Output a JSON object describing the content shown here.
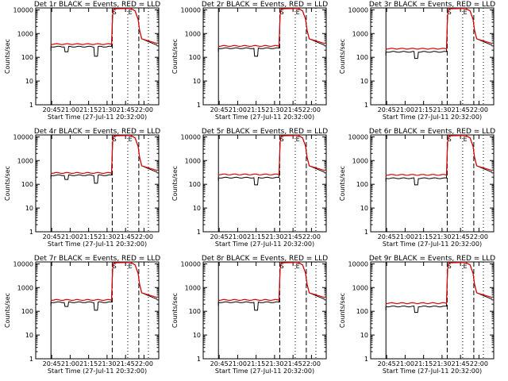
{
  "page": {
    "background": "#ffffff"
  },
  "style": {
    "events_color": "#000000",
    "lld_color": "#e00000"
  },
  "chart_data": [
    {
      "type": "line",
      "title": "Det 1r BLACK = Events, RED = LLD",
      "xlabel": "Start Time (27-Jul-11 20:32:00)",
      "ylabel": "Counts/sec",
      "x_ticks": [
        "20:45",
        "21:00",
        "21:15",
        "21:30",
        "21:45",
        "22:00"
      ],
      "y_ticks": [
        "1",
        "10",
        "100",
        "1000",
        "10000"
      ],
      "y_scale": "log",
      "ylim": [
        1,
        12000
      ],
      "series": [
        {
          "color": "#000000",
          "level": 280,
          "dips": [
            [
              20.95,
              170
            ],
            [
              21.35,
              110
            ]
          ],
          "start_dip": 190
        },
        {
          "color": "#e00000",
          "level": 360
        }
      ],
      "markers": [
        "S",
        "E"
      ]
    },
    {
      "type": "line",
      "title": "Det 2r BLACK = Events, RED = LLD",
      "xlabel": "Start Time (27-Jul-11 20:32:00)",
      "ylabel": "Counts/sec",
      "x_ticks": [
        "20:45",
        "21:00",
        "21:15",
        "21:30",
        "21:45",
        "22:00"
      ],
      "y_ticks": [
        "1",
        "10",
        "100",
        "1000",
        "10000"
      ],
      "y_scale": "log",
      "ylim": [
        1,
        12000
      ],
      "series": [
        {
          "color": "#000000",
          "level": 240,
          "dips": [
            [
              21.25,
              110
            ]
          ],
          "start_dip": 170
        },
        {
          "color": "#e00000",
          "level": 300
        }
      ],
      "markers": [
        "S",
        "E"
      ]
    },
    {
      "type": "line",
      "title": "Det 3r BLACK = Events, RED = LLD",
      "xlabel": "Start Time (27-Jul-11 20:32:00)",
      "ylabel": "Counts/sec",
      "x_ticks": [
        "20:45",
        "21:00",
        "21:15",
        "21:30",
        "21:45",
        "22:00"
      ],
      "y_ticks": [
        "1",
        "10",
        "100",
        "1000",
        "10000"
      ],
      "y_scale": "log",
      "ylim": [
        1,
        12000
      ],
      "series": [
        {
          "color": "#000000",
          "level": 170,
          "dips": [
            [
              21.15,
              90
            ]
          ],
          "start_dip": 120
        },
        {
          "color": "#e00000",
          "level": 230
        }
      ],
      "markers": [
        "S",
        "E"
      ]
    },
    {
      "type": "line",
      "title": "Det 4r BLACK = Events, RED = LLD",
      "xlabel": "Start Time (27-Jul-11 20:32:00)",
      "ylabel": "Counts/sec",
      "x_ticks": [
        "20:45",
        "21:00",
        "21:15",
        "21:30",
        "21:45",
        "22:00"
      ],
      "y_ticks": [
        "1",
        "10",
        "100",
        "1000",
        "10000"
      ],
      "y_scale": "log",
      "ylim": [
        1,
        12000
      ],
      "series": [
        {
          "color": "#000000",
          "level": 240,
          "dips": [
            [
              20.95,
              160
            ],
            [
              21.35,
              110
            ]
          ],
          "start_dip": 170
        },
        {
          "color": "#e00000",
          "level": 300
        }
      ],
      "markers": [
        "S",
        "E"
      ]
    },
    {
      "type": "line",
      "title": "Det 5r BLACK = Events, RED = LLD",
      "xlabel": "Start Time (27-Jul-11 20:32:00)",
      "ylabel": "Counts/sec",
      "x_ticks": [
        "20:45",
        "21:00",
        "21:15",
        "21:30",
        "21:45",
        "22:00"
      ],
      "y_ticks": [
        "1",
        "10",
        "100",
        "1000",
        "10000"
      ],
      "y_scale": "log",
      "ylim": [
        1,
        12000
      ],
      "series": [
        {
          "color": "#000000",
          "level": 190,
          "dips": [
            [
              21.25,
              95
            ]
          ],
          "start_dip": 140
        },
        {
          "color": "#e00000",
          "level": 260
        }
      ],
      "markers": [
        "S",
        "E"
      ]
    },
    {
      "type": "line",
      "title": "Det 6r BLACK = Events, RED = LLD",
      "xlabel": "Start Time (27-Jul-11 20:32:00)",
      "ylabel": "Counts/sec",
      "x_ticks": [
        "20:45",
        "21:00",
        "21:15",
        "21:30",
        "21:45",
        "22:00"
      ],
      "y_ticks": [
        "1",
        "10",
        "100",
        "1000",
        "10000"
      ],
      "y_scale": "log",
      "ylim": [
        1,
        12000
      ],
      "series": [
        {
          "color": "#000000",
          "level": 180,
          "dips": [
            [
              21.15,
              95
            ]
          ],
          "start_dip": 130
        },
        {
          "color": "#e00000",
          "level": 250
        }
      ],
      "markers": [
        "S",
        "E"
      ]
    },
    {
      "type": "line",
      "title": "Det 7r BLACK = Events, RED = LLD",
      "xlabel": "Start Time (27-Jul-11 20:32:00)",
      "ylabel": "Counts/sec",
      "x_ticks": [
        "20:45",
        "21:00",
        "21:15",
        "21:30",
        "21:45",
        "22:00"
      ],
      "y_ticks": [
        "1",
        "10",
        "100",
        "1000",
        "10000"
      ],
      "y_scale": "log",
      "ylim": [
        1,
        12000
      ],
      "series": [
        {
          "color": "#000000",
          "level": 240,
          "dips": [
            [
              20.95,
              160
            ],
            [
              21.35,
              110
            ]
          ],
          "start_dip": 170
        },
        {
          "color": "#e00000",
          "level": 300
        }
      ],
      "markers": [
        "S",
        "E"
      ]
    },
    {
      "type": "line",
      "title": "Det 8r BLACK = Events, RED = LLD",
      "xlabel": "Start Time (27-Jul-11 20:32:00)",
      "ylabel": "Counts/sec",
      "x_ticks": [
        "20:45",
        "21:00",
        "21:15",
        "21:30",
        "21:45",
        "22:00"
      ],
      "y_ticks": [
        "1",
        "10",
        "100",
        "1000",
        "10000"
      ],
      "y_scale": "log",
      "ylim": [
        1,
        12000
      ],
      "series": [
        {
          "color": "#000000",
          "level": 240,
          "dips": [
            [
              21.25,
              110
            ]
          ],
          "start_dip": 170
        },
        {
          "color": "#e00000",
          "level": 300
        }
      ],
      "markers": [
        "S",
        "E"
      ]
    },
    {
      "type": "line",
      "title": "Det 9r BLACK = Events, RED = LLD",
      "xlabel": "Start Time (27-Jul-11 20:32:00)",
      "ylabel": "Counts/sec",
      "x_ticks": [
        "20:45",
        "21:00",
        "21:15",
        "21:30",
        "21:45",
        "22:00"
      ],
      "y_ticks": [
        "1",
        "10",
        "100",
        "1000",
        "10000"
      ],
      "y_scale": "log",
      "ylim": [
        1,
        12000
      ],
      "series": [
        {
          "color": "#000000",
          "level": 160,
          "dips": [
            [
              21.15,
              90
            ]
          ],
          "start_dip": 110
        },
        {
          "color": "#e00000",
          "level": 220
        }
      ],
      "markers": [
        "S",
        "E"
      ]
    }
  ]
}
